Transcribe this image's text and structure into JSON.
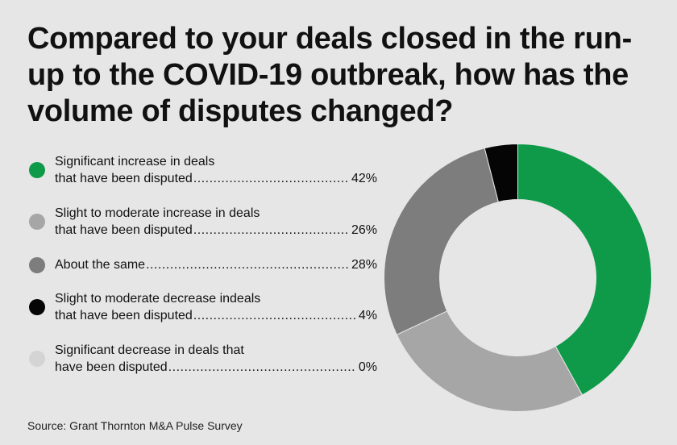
{
  "title": "Compared to your deals closed in the run-up to the COVID-19 outbreak, how has the volume of disputes changed?",
  "source": "Source: Grant Thornton M&A Pulse Survey",
  "chart_data": {
    "type": "pie",
    "style": "donut",
    "unit": "%",
    "slices": [
      {
        "line1": "Significant increase in deals",
        "line2": "that have been disputed",
        "value": 42,
        "label": "42%",
        "color": "#0e9a48"
      },
      {
        "line1": "Slight to moderate increase in deals",
        "line2": "that have been disputed",
        "value": 26,
        "label": "26%",
        "color": "#a6a6a6"
      },
      {
        "line1": "About the same",
        "line2": "",
        "value": 28,
        "label": "28%",
        "color": "#7d7d7d"
      },
      {
        "line1": "Slight to moderate decrease indeals",
        "line2": "that have been disputed",
        "value": 4,
        "label": "4%",
        "color": "#050505"
      },
      {
        "line1": "Significant decrease in deals that",
        "line2": "have been disputed",
        "value": 0,
        "label": "0%",
        "color": "#d4d4d4"
      }
    ]
  }
}
